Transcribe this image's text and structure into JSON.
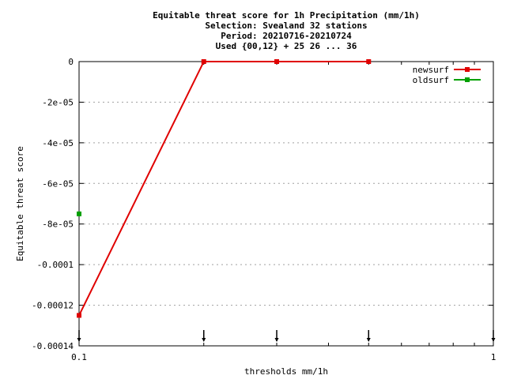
{
  "chart_data": {
    "type": "line",
    "title_lines": [
      "Equitable threat score  for 1h Precipitation (mm/1h)",
      "Selection: Svealand     32 stations",
      "Period: 20210716-20210724",
      "Used {00,12} + 25 26 ... 36"
    ],
    "xlabel": "thresholds mm/1h",
    "ylabel": "Equitable threat score",
    "xscale": "log",
    "xlim": [
      0.1,
      1
    ],
    "ylim": [
      -0.00014,
      0
    ],
    "xtick_labels": [
      {
        "value": 0.1,
        "label": "0.1"
      },
      {
        "value": 1,
        "label": "1"
      }
    ],
    "ytick_labels": [
      {
        "value": 0,
        "label": "0"
      },
      {
        "value": -2e-05,
        "label": "-2e-05"
      },
      {
        "value": -4e-05,
        "label": "-4e-05"
      },
      {
        "value": -6e-05,
        "label": "-6e-05"
      },
      {
        "value": -8e-05,
        "label": "-8e-05"
      },
      {
        "value": -0.0001,
        "label": "-0.0001"
      },
      {
        "value": -0.00012,
        "label": "-0.00012"
      },
      {
        "value": -0.00014,
        "label": "-0.00014"
      }
    ],
    "threshold_markers": [
      0.1,
      0.2,
      0.3,
      0.5,
      1
    ],
    "grid": true,
    "legend_position": "top-right",
    "series": [
      {
        "name": "newsurf",
        "color": "#e00000",
        "x": [
          0.1,
          0.2,
          0.3,
          0.5
        ],
        "y": [
          -0.000125,
          0,
          0,
          0
        ]
      },
      {
        "name": "oldsurf",
        "color": "#00a000",
        "x": [
          0.1
        ],
        "y": [
          -7.5e-05
        ]
      }
    ]
  }
}
